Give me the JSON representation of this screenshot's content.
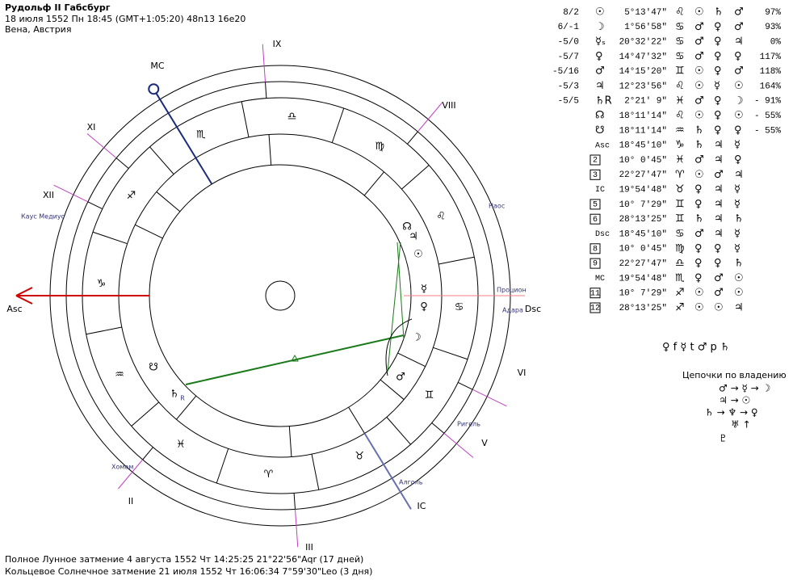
{
  "header": {
    "title": "Рудольф II Габсбург",
    "details": "18 июля 1552  Пн  18:45 (GMT+1:05:20) 48n13  16e20",
    "place": "Вена, Австрия"
  },
  "wheel": {
    "house_numerals": [
      "IX",
      "VIII",
      "VI",
      "V",
      "III",
      "II",
      "XII",
      "XI"
    ],
    "angles": [
      "MC",
      "Asc",
      "IC",
      "Dsc"
    ],
    "signs": [
      "♈",
      "♉",
      "♊",
      "♋",
      "♌",
      "♍",
      "♎",
      "♏",
      "♐",
      "♑",
      "♒",
      "♓"
    ],
    "stars": [
      "Каус Медиус",
      "Наос",
      "Процион",
      "Адара",
      "Ригель",
      "Хомам",
      "Алголь"
    ],
    "planets": [
      "☊",
      "♃",
      "☉",
      "☿",
      "♀",
      "☽",
      "♂",
      "♄",
      "R",
      "☋"
    ]
  },
  "table": {
    "rows": [
      [
        "8/2",
        "☉",
        "5°13'47\"",
        "♌",
        "☉",
        "♄",
        "♂",
        "97%"
      ],
      [
        "6/-1",
        "☽",
        "1°56'58\"",
        "♋",
        "♂",
        "♀",
        "♂",
        "93%"
      ],
      [
        "-5/0",
        "☿ₛ",
        "20°32'22\"",
        "♋",
        "♂",
        "♀",
        "♃",
        "0%"
      ],
      [
        "-5/7",
        "♀",
        "14°47'32\"",
        "♋",
        "♂",
        "♀",
        "♀",
        "117%"
      ],
      [
        "-5/16",
        "♂",
        "14°15'20\"",
        "♊",
        "☉",
        "♀",
        "♂",
        "118%"
      ],
      [
        "-5/3",
        "♃",
        "12°23'56\"",
        "♌",
        "☉",
        "☿",
        "☉",
        "164%"
      ],
      [
        "-5/5",
        "♄R",
        "2°21' 9\"",
        "♓",
        "♂",
        "♀",
        "☽",
        "- 91%"
      ],
      [
        "",
        "☊",
        "18°11'14\"",
        "♌",
        "☉",
        "♀",
        "☉",
        "- 55%"
      ],
      [
        "",
        "☋",
        "18°11'14\"",
        "♒",
        "♄",
        "♀",
        "♀",
        "- 55%"
      ],
      [
        "",
        "Asc",
        "18°45'10\"",
        "♑",
        "♄",
        "♃",
        "☿",
        ""
      ],
      [
        "",
        "2",
        "10° 0'45\"",
        "♓",
        "♂",
        "♃",
        "♀",
        ""
      ],
      [
        "",
        "3",
        "22°27'47\"",
        "♈",
        "☉",
        "♂",
        "♃",
        ""
      ],
      [
        "",
        "IC",
        "19°54'48\"",
        "♉",
        "♀",
        "♃",
        "☿",
        ""
      ],
      [
        "",
        "5",
        "10° 7'29\"",
        "♊",
        "♀",
        "♃",
        "☿",
        ""
      ],
      [
        "",
        "6",
        "28°13'25\"",
        "♊",
        "♄",
        "♃",
        "♄",
        ""
      ],
      [
        "",
        "Dsc",
        "18°45'10\"",
        "♋",
        "♂",
        "♃",
        "☿",
        ""
      ],
      [
        "",
        "8",
        "10° 0'45\"",
        "♍",
        "♀",
        "♀",
        "☿",
        ""
      ],
      [
        "",
        "9",
        "22°27'47\"",
        "♎",
        "♀",
        "♀",
        "♄",
        ""
      ],
      [
        "",
        "MC",
        "19°54'48\"",
        "♏",
        "♀",
        "♂",
        "☉",
        ""
      ],
      [
        "",
        "11",
        "10° 7'29\"",
        "♐",
        "☉",
        "♂",
        "☉",
        ""
      ],
      [
        "",
        "12",
        "28°13'25\"",
        "♐",
        "☉",
        "☉",
        "♃",
        ""
      ]
    ]
  },
  "dispositors": {
    "line": "♀ f ☿ t ♂ p ♄",
    "title": "Цепочки по владению",
    "chains": [
      "♂ → ☿ → ☽",
      "♃ → ☉",
      "♄ → ♆ → ♀",
      "♅ ↑",
      "♇"
    ]
  },
  "footer": [
    "Полное Лунное затмение 4 августа 1552 Чт 14:25:25 21°22'56\"Aqr (17 дней)",
    "Кольцевое Солнечное затмение 21 июля 1552 Чт 16:06:34  7°59'30\"Leo (3 дня)"
  ]
}
